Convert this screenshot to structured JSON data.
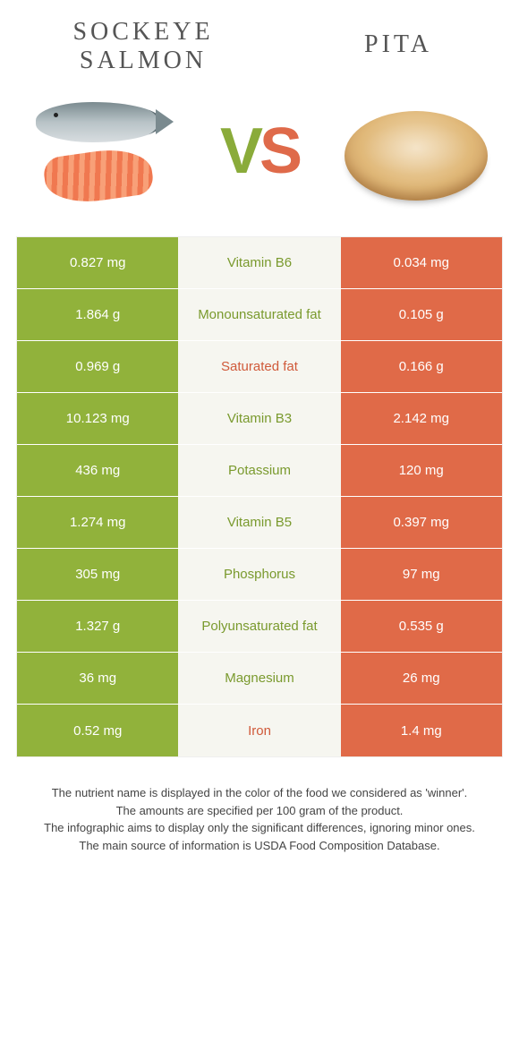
{
  "colors": {
    "left": "#91b23b",
    "right": "#e06a48",
    "left_text": "#7a9a2e",
    "right_text": "#d05a3a",
    "background": "#ffffff",
    "mid_bg": "#f6f6f0"
  },
  "header": {
    "left_title": "Sockeye salmon",
    "right_title": "Pita",
    "vs_v": "V",
    "vs_s": "S"
  },
  "rows": [
    {
      "left": "0.827 mg",
      "label": "Vitamin B6",
      "right": "0.034 mg",
      "winner": "left"
    },
    {
      "left": "1.864 g",
      "label": "Monounsaturated fat",
      "right": "0.105 g",
      "winner": "left"
    },
    {
      "left": "0.969 g",
      "label": "Saturated fat",
      "right": "0.166 g",
      "winner": "right"
    },
    {
      "left": "10.123 mg",
      "label": "Vitamin B3",
      "right": "2.142 mg",
      "winner": "left"
    },
    {
      "left": "436 mg",
      "label": "Potassium",
      "right": "120 mg",
      "winner": "left"
    },
    {
      "left": "1.274 mg",
      "label": "Vitamin B5",
      "right": "0.397 mg",
      "winner": "left"
    },
    {
      "left": "305 mg",
      "label": "Phosphorus",
      "right": "97 mg",
      "winner": "left"
    },
    {
      "left": "1.327 g",
      "label": "Polyunsaturated fat",
      "right": "0.535 g",
      "winner": "left"
    },
    {
      "left": "36 mg",
      "label": "Magnesium",
      "right": "26 mg",
      "winner": "left"
    },
    {
      "left": "0.52 mg",
      "label": "Iron",
      "right": "1.4 mg",
      "winner": "right"
    }
  ],
  "footer": {
    "line1": "The nutrient name is displayed in the color of the food we considered as 'winner'.",
    "line2": "The amounts are specified per 100 gram of the product.",
    "line3": "The infographic aims to display only the significant differences, ignoring minor ones.",
    "line4": "The main source of information is USDA Food Composition Database."
  }
}
